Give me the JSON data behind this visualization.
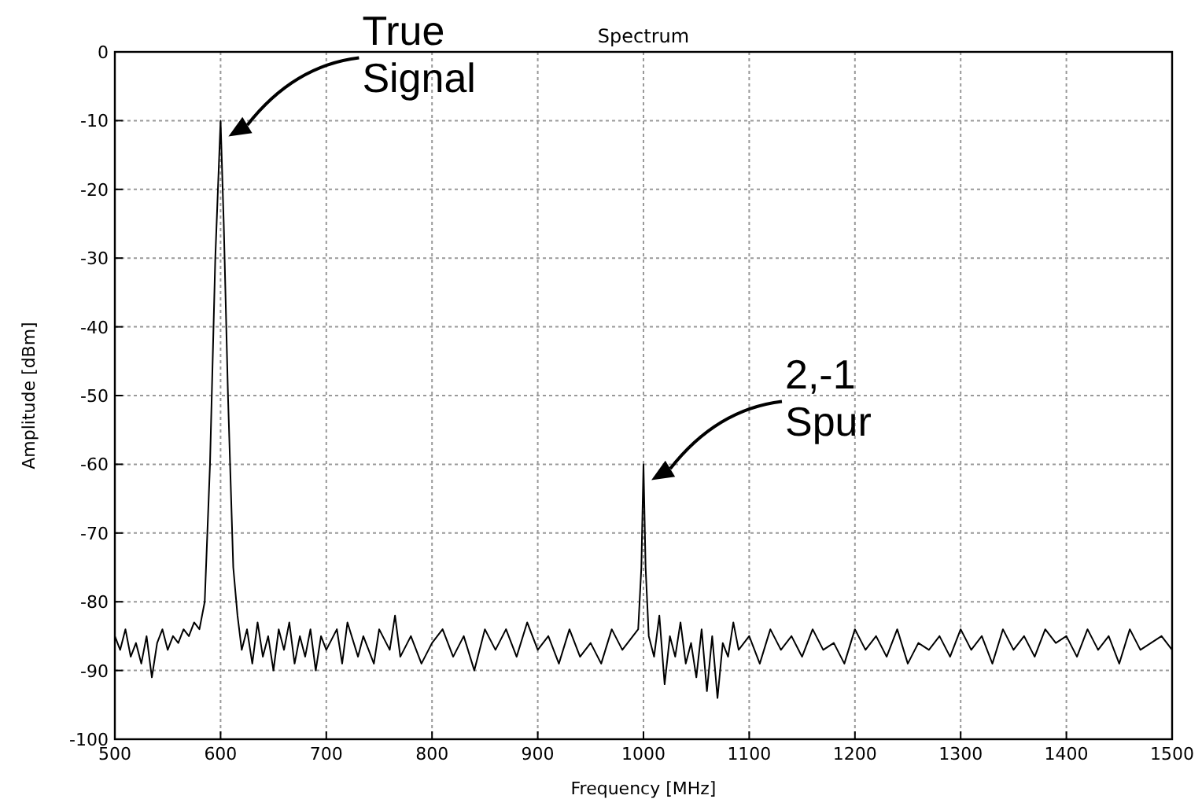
{
  "chart_data": {
    "type": "line",
    "title": "Spectrum",
    "xlabel": "Frequency [MHz]",
    "ylabel": "Amplitude [dBm]",
    "xlim": [
      500,
      1500
    ],
    "xticks": [
      500,
      600,
      700,
      800,
      900,
      1000,
      1100,
      1200,
      1300,
      1400,
      1500
    ],
    "ylim": [
      -100,
      0
    ],
    "yticks": [
      -100,
      -90,
      -80,
      -70,
      -60,
      -50,
      -40,
      -30,
      -20,
      -10,
      0
    ],
    "grid": true,
    "line_style": "solid",
    "annotations": [
      "True Signal",
      "2,-1 Spur"
    ],
    "series": [
      {
        "color": "#000000",
        "x": [
          500,
          505,
          510,
          515,
          520,
          525,
          530,
          535,
          540,
          545,
          550,
          555,
          560,
          565,
          570,
          575,
          580,
          585,
          590,
          595,
          600,
          603,
          607,
          612,
          616,
          620,
          625,
          630,
          635,
          640,
          645,
          650,
          655,
          660,
          665,
          670,
          675,
          680,
          685,
          690,
          695,
          700,
          710,
          715,
          720,
          730,
          735,
          745,
          750,
          760,
          765,
          770,
          780,
          790,
          800,
          810,
          820,
          830,
          840,
          850,
          860,
          870,
          880,
          890,
          900,
          910,
          920,
          930,
          940,
          950,
          960,
          970,
          980,
          990,
          995,
          998,
          1000,
          1002,
          1005,
          1010,
          1015,
          1020,
          1025,
          1030,
          1035,
          1040,
          1045,
          1050,
          1055,
          1060,
          1065,
          1070,
          1075,
          1080,
          1085,
          1090,
          1100,
          1110,
          1120,
          1130,
          1140,
          1150,
          1160,
          1170,
          1180,
          1190,
          1200,
          1210,
          1220,
          1230,
          1240,
          1250,
          1260,
          1270,
          1280,
          1290,
          1300,
          1310,
          1320,
          1330,
          1340,
          1350,
          1360,
          1370,
          1380,
          1390,
          1400,
          1410,
          1420,
          1430,
          1440,
          1450,
          1460,
          1470,
          1480,
          1490,
          1500
        ],
        "values": [
          -85,
          -87,
          -84,
          -88,
          -86,
          -89,
          -85,
          -91,
          -86,
          -84,
          -87,
          -85,
          -86,
          -84,
          -85,
          -83,
          -84,
          -80,
          -60,
          -30,
          -10,
          -25,
          -50,
          -75,
          -82,
          -87,
          -84,
          -89,
          -83,
          -88,
          -85,
          -90,
          -84,
          -87,
          -83,
          -89,
          -85,
          -88,
          -84,
          -90,
          -85,
          -87,
          -84,
          -89,
          -83,
          -88,
          -85,
          -89,
          -84,
          -87,
          -82,
          -88,
          -85,
          -89,
          -86,
          -84,
          -88,
          -85,
          -90,
          -84,
          -87,
          -84,
          -88,
          -83,
          -87,
          -85,
          -89,
          -84,
          -88,
          -86,
          -89,
          -84,
          -87,
          -85,
          -84,
          -75,
          -60,
          -75,
          -85,
          -88,
          -82,
          -92,
          -85,
          -88,
          -83,
          -89,
          -86,
          -91,
          -84,
          -93,
          -85,
          -94,
          -86,
          -88,
          -83,
          -87,
          -85,
          -89,
          -84,
          -87,
          -85,
          -88,
          -84,
          -87,
          -86,
          -89,
          -84,
          -87,
          -85,
          -88,
          -84,
          -89,
          -86,
          -87,
          -85,
          -88,
          -84,
          -87,
          -85,
          -89,
          -84,
          -87,
          -85,
          -88,
          -84,
          -86,
          -85,
          -88,
          -84,
          -87,
          -85,
          -89,
          -84,
          -87,
          -86,
          -85,
          -87
        ]
      }
    ]
  }
}
